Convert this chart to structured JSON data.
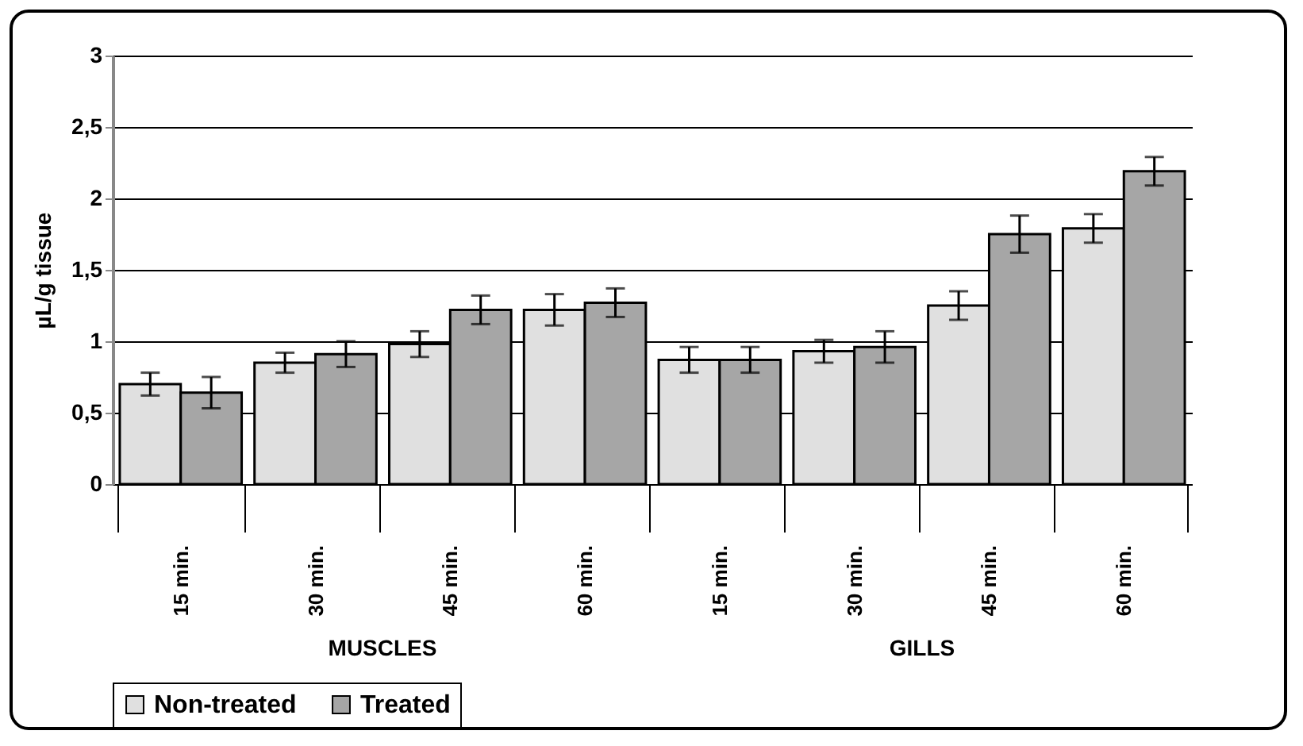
{
  "chart_data": {
    "type": "bar",
    "ylabel": "µL/g tissue",
    "categories": [
      "15 min.",
      "30 min.",
      "45 min.",
      "60 min.",
      "15 min.",
      "30 min.",
      "45 min.",
      "60 min."
    ],
    "annotations": [
      "MUSCLES",
      "GILLS"
    ],
    "series": [
      {
        "name": "Non-treated",
        "color": "#e0e0e0",
        "values": [
          0.7,
          0.85,
          0.98,
          1.22,
          0.87,
          0.93,
          1.25,
          1.79
        ],
        "errors": [
          0.08,
          0.07,
          0.09,
          0.11,
          0.09,
          0.08,
          0.1,
          0.1
        ]
      },
      {
        "name": "Treated",
        "color": "#a6a6a6",
        "values": [
          0.64,
          0.91,
          1.22,
          1.27,
          0.87,
          0.96,
          1.75,
          2.19
        ],
        "errors": [
          0.11,
          0.09,
          0.1,
          0.1,
          0.09,
          0.11,
          0.13,
          0.1
        ]
      }
    ],
    "ylim": [
      0,
      3
    ],
    "yticks": [
      0,
      {
        "value": 0.5,
        "label": "0,5"
      },
      1,
      {
        "value": 1.5,
        "label": "1,5"
      },
      2,
      {
        "value": 2.5,
        "label": "2,5"
      },
      3
    ],
    "grid": "y",
    "legend": "bottom"
  }
}
